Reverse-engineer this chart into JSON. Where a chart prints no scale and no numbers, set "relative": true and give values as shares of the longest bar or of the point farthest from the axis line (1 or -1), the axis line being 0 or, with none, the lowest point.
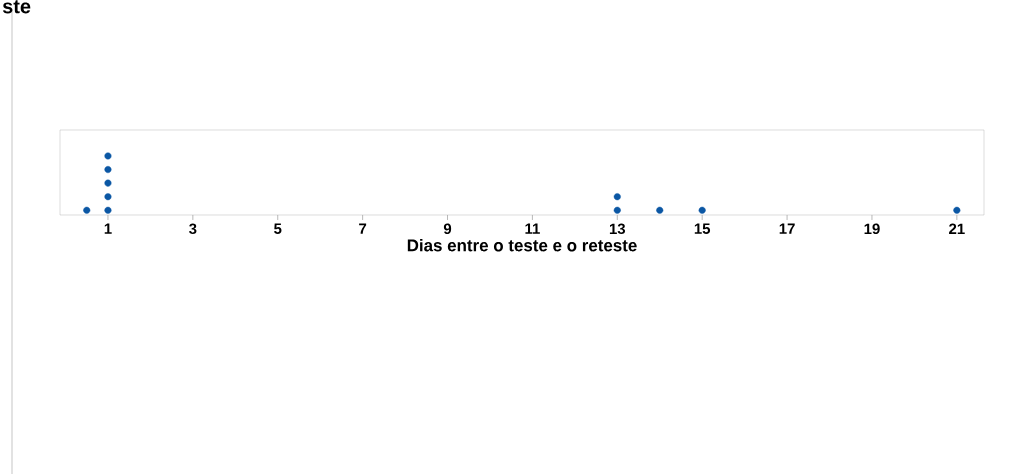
{
  "chart_data": {
    "type": "scatter",
    "xlabel": "Dias entre o teste e o reteste",
    "annotations": [
      "ste"
    ],
    "x": [
      0.5,
      1,
      1,
      1,
      1,
      1,
      13,
      13,
      14,
      15,
      21
    ],
    "values": [
      0.08,
      0.08,
      0.31,
      0.54,
      0.77,
      1,
      0.08,
      0.31,
      0.08,
      0.08,
      0.08
    ],
    "relative": true,
    "color": "#0b57a4",
    "xlim": [
      -0.13,
      21.64
    ],
    "xticks": [
      1,
      3,
      5,
      7,
      9,
      11,
      13,
      15,
      17,
      19,
      21
    ],
    "tick_labels": "x"
  }
}
